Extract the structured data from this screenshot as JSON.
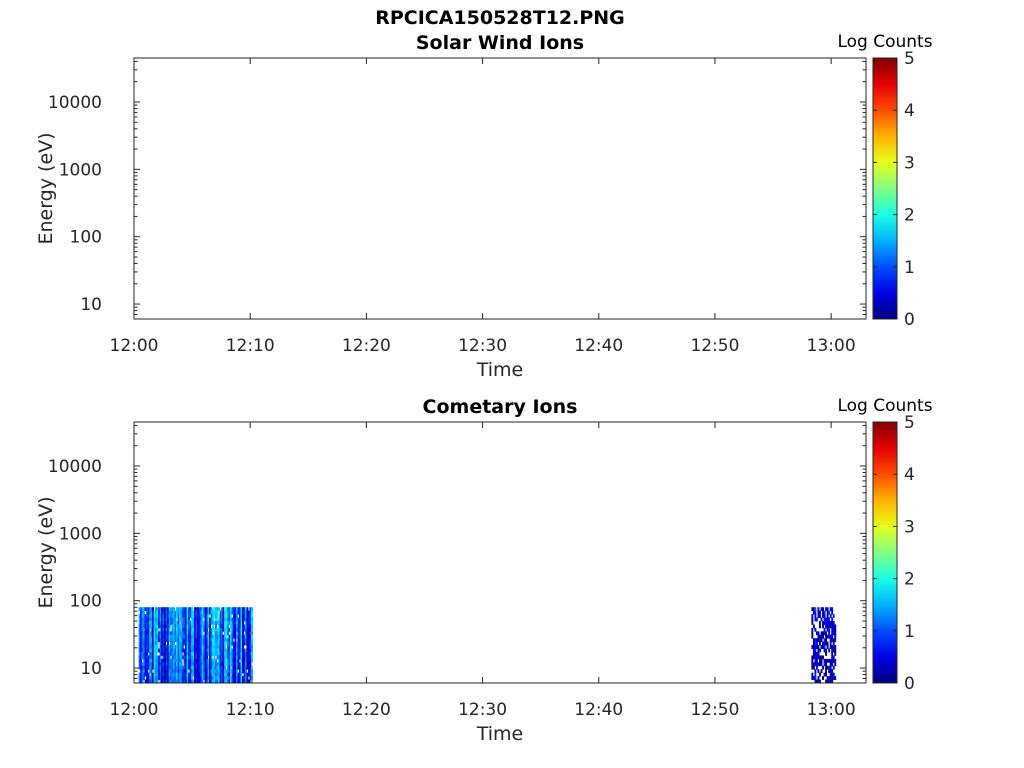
{
  "figure_title": "RPCICA150528T12.PNG",
  "chart_data": [
    {
      "type": "heatmap",
      "title": "Solar Wind Ions",
      "xlabel": "Time",
      "ylabel": "Energy (eV)",
      "x_ticks": [
        "12:00",
        "12:10",
        "12:20",
        "12:30",
        "12:40",
        "12:50",
        "13:00"
      ],
      "x_range_minutes": [
        0,
        63
      ],
      "y_scale": "log",
      "y_ticks": [
        10,
        100,
        1000,
        10000
      ],
      "y_tick_labels": [
        "10",
        "100",
        "1000",
        "10000"
      ],
      "y_range": [
        6,
        45000
      ],
      "colorbar": {
        "label": "Log Counts",
        "ticks": [
          "0",
          "1",
          "2",
          "3",
          "4",
          "5"
        ],
        "range": [
          0,
          5
        ],
        "colormap": "jet"
      },
      "data_blocks": []
    },
    {
      "type": "heatmap",
      "title": "Cometary Ions",
      "xlabel": "Time",
      "ylabel": "Energy (eV)",
      "x_ticks": [
        "12:00",
        "12:10",
        "12:20",
        "12:30",
        "12:40",
        "12:50",
        "13:00"
      ],
      "x_range_minutes": [
        0,
        63
      ],
      "y_scale": "log",
      "y_ticks": [
        10,
        100,
        1000,
        10000
      ],
      "y_tick_labels": [
        "10",
        "100",
        "1000",
        "10000"
      ],
      "y_range": [
        6,
        45000
      ],
      "colorbar": {
        "label": "Log Counts",
        "ticks": [
          "0",
          "1",
          "2",
          "3",
          "4",
          "5"
        ],
        "range": [
          0,
          5
        ],
        "colormap": "jet"
      },
      "data_blocks": [
        {
          "t_start_min": 0.4,
          "t_end_min": 10.2,
          "e_min_ev": 6,
          "e_max_ev": 80,
          "log_counts_low": 0.3,
          "log_counts_high": 2.0,
          "fill_fraction": 0.95
        },
        {
          "t_start_min": 58.3,
          "t_end_min": 60.4,
          "e_min_ev": 6,
          "e_max_ev": 80,
          "log_counts_low": 0.1,
          "log_counts_high": 0.8,
          "fill_fraction": 0.6
        }
      ]
    }
  ]
}
